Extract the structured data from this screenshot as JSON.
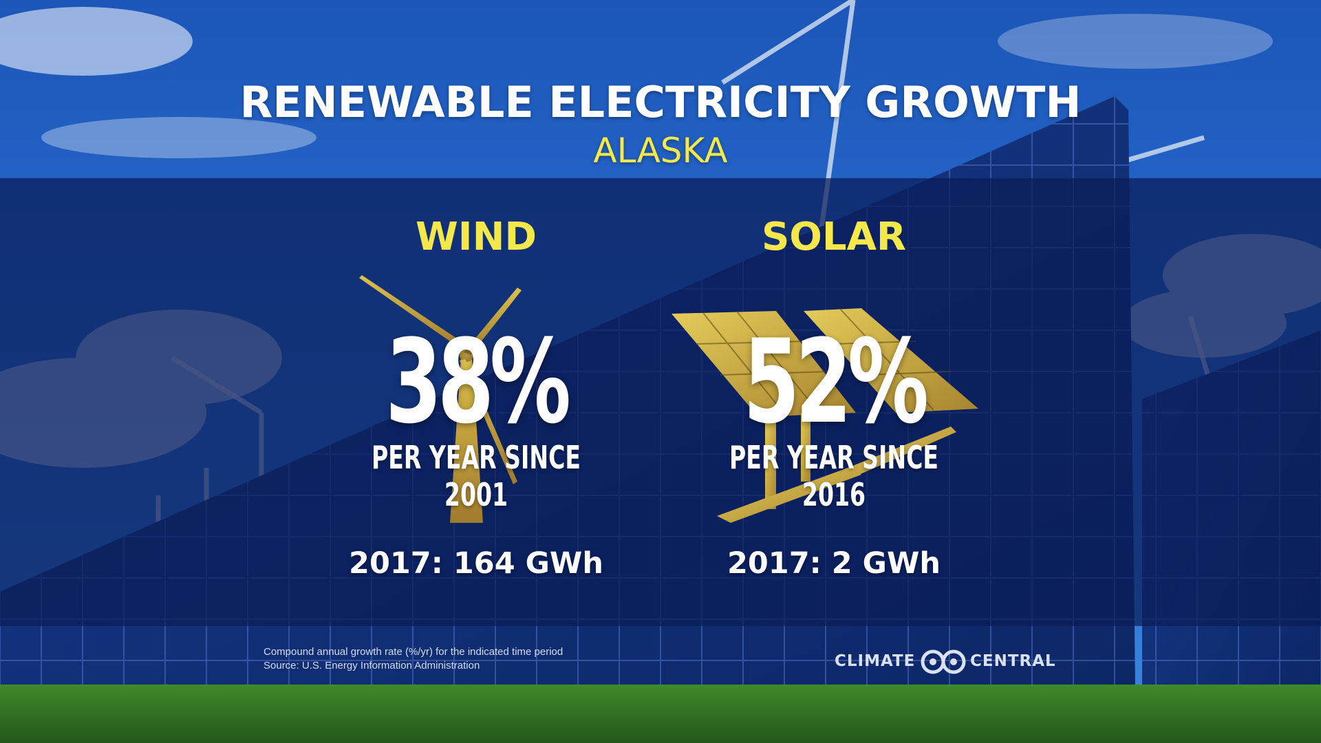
{
  "header": {
    "title": "RENEWABLE ELECTRICITY GROWTH",
    "subtitle": "ALASKA"
  },
  "panels": {
    "wind": {
      "heading": "WIND",
      "icon": "wind-turbine-icon",
      "rate": "38%",
      "since": "PER YEAR SINCE 2001",
      "generation": "2017: 164 GWh"
    },
    "solar": {
      "heading": "SOLAR",
      "icon": "solar-panel-icon",
      "rate": "52%",
      "since": "PER YEAR SINCE 2016",
      "generation": "2017: 2 GWh"
    }
  },
  "footer": {
    "note_line1": "Compound annual growth rate (%/yr) for the indicated time period",
    "note_line2": "Source: U.S. Energy  Information Administration",
    "brand_left": "CLIMATE",
    "brand_right": "CENTRAL"
  },
  "colors": {
    "accent_yellow": "#f4e84a",
    "band_navy": "#0a1c58",
    "icon_gold": "#c9a23a"
  }
}
